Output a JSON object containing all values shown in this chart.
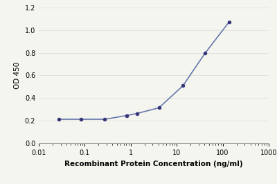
{
  "x": [
    0.0274,
    0.0822,
    0.274,
    0.822,
    1.37,
    4.11,
    13.7,
    41.1,
    137
  ],
  "y": [
    0.214,
    0.214,
    0.214,
    0.247,
    0.265,
    0.315,
    0.51,
    0.795,
    1.07
  ],
  "line_color": "#6677aa",
  "marker_color": "#333377",
  "marker_size": 3.5,
  "line_width": 1.2,
  "xlabel": "Recombinant Protein Concentration (ng/ml)",
  "ylabel": "OD 450",
  "xlim": [
    0.01,
    1000
  ],
  "ylim": [
    0.0,
    1.2
  ],
  "yticks": [
    0.0,
    0.2,
    0.4,
    0.6,
    0.8,
    1.0,
    1.2
  ],
  "xtick_labels": [
    "0.01",
    "0.1",
    "1",
    "10",
    "100",
    "1000"
  ],
  "xtick_positions": [
    0.01,
    0.1,
    1,
    10,
    100,
    1000
  ],
  "grid_color": "#e0e0e0",
  "background_color": "#f5f5f0",
  "plot_bg_color": "#f5f5f0",
  "xlabel_fontsize": 7.5,
  "ylabel_fontsize": 7.5,
  "tick_fontsize": 7,
  "xlabel_bold": true
}
